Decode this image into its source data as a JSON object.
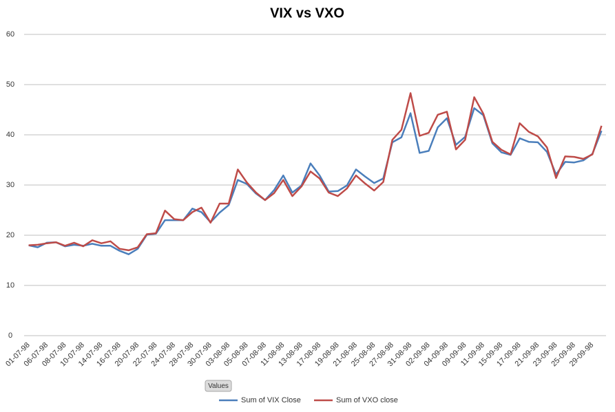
{
  "chart_data": {
    "type": "line",
    "title": "VIX vs VXO",
    "field_button": "Values",
    "categories": [
      "01-07-98",
      null,
      "06-07-98",
      null,
      "08-07-98",
      null,
      "10-07-98",
      null,
      "14-07-98",
      null,
      "16-07-98",
      null,
      "20-07-98",
      null,
      "22-07-98",
      null,
      "24-07-98",
      null,
      "28-07-98",
      null,
      "30-07-98",
      null,
      "03-08-98",
      null,
      "05-08-98",
      null,
      "07-08-98",
      null,
      "11-08-98",
      null,
      "13-08-98",
      null,
      "17-08-98",
      null,
      "19-08-98",
      null,
      "21-08-98",
      null,
      "25-08-98",
      null,
      "27-08-98",
      null,
      "31-08-98",
      null,
      "02-09-98",
      null,
      "04-09-98",
      null,
      "09-09-98",
      null,
      "11-09-98",
      null,
      "15-09-98",
      null,
      "17-09-98",
      null,
      "21-09-98",
      null,
      "23-09-98",
      null,
      "25-09-98",
      null,
      "29-09-98",
      null
    ],
    "series": [
      {
        "name": "Sum of VIX Close",
        "color": "#4a7ebb",
        "values": [
          18.0,
          17.6,
          18.5,
          18.6,
          17.8,
          18.1,
          17.9,
          18.3,
          17.9,
          17.9,
          16.9,
          16.2,
          17.3,
          20.1,
          20.3,
          23.0,
          23.0,
          23.0,
          25.3,
          24.6,
          22.6,
          24.5,
          26.0,
          31.0,
          30.2,
          28.3,
          27.0,
          29.0,
          31.9,
          28.5,
          29.9,
          34.3,
          31.9,
          28.7,
          28.8,
          29.9,
          33.1,
          31.7,
          30.4,
          31.3,
          38.5,
          39.5,
          44.3,
          36.4,
          36.8,
          41.5,
          43.3,
          38.0,
          39.6,
          45.3,
          43.9,
          38.3,
          36.5,
          36.0,
          39.3,
          38.6,
          38.5,
          36.6,
          32.1,
          34.6,
          34.5,
          34.9,
          36.2,
          40.8
        ]
      },
      {
        "name": "Sum of VXO close",
        "color": "#be4b48",
        "values": [
          18.0,
          18.1,
          18.4,
          18.6,
          17.9,
          18.5,
          17.8,
          19.0,
          18.4,
          18.8,
          17.3,
          17.0,
          17.6,
          20.2,
          20.4,
          24.9,
          23.2,
          23.0,
          24.6,
          25.5,
          22.5,
          26.3,
          26.3,
          33.1,
          30.5,
          28.5,
          27.0,
          28.4,
          31.0,
          27.8,
          29.7,
          32.7,
          31.3,
          28.5,
          27.8,
          29.3,
          31.9,
          30.3,
          28.9,
          30.6,
          39.0,
          41.0,
          48.3,
          39.8,
          40.4,
          44.0,
          44.6,
          37.1,
          39.0,
          47.5,
          44.2,
          38.6,
          37.0,
          36.1,
          42.3,
          40.6,
          39.7,
          37.5,
          31.4,
          35.7,
          35.6,
          35.2,
          36.1,
          41.8
        ]
      }
    ],
    "ylim": [
      0,
      60
    ],
    "yticks": [
      0,
      10,
      20,
      30,
      40,
      50,
      60
    ],
    "grid": true,
    "legend": "bottom"
  }
}
